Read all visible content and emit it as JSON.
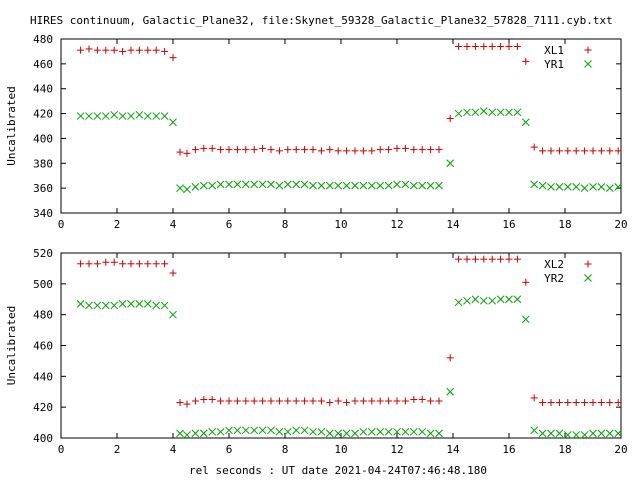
{
  "figure": {
    "title": "HIRES continuum, Galactic_Plane32, file:Skynet_59328_Galactic_Plane32_57828_7111.cyb.txt",
    "xlabel": "rel seconds : UT date 2021-04-24T07:46:48.180"
  },
  "chart_data": [
    {
      "type": "scatter",
      "ylabel": "Uncalibrated",
      "xlim": [
        0,
        20
      ],
      "ylim": [
        340,
        480
      ],
      "xticks": [
        0,
        2,
        4,
        6,
        8,
        10,
        12,
        14,
        16,
        18,
        20
      ],
      "yticks": [
        340,
        360,
        380,
        400,
        420,
        440,
        460,
        480
      ],
      "grid": false,
      "legend_position": "top-right",
      "series": [
        {
          "name": "XL1",
          "marker": "plus",
          "color": "#cc0000",
          "x": [
            0.7,
            1.0,
            1.3,
            1.6,
            1.9,
            2.2,
            2.5,
            2.8,
            3.1,
            3.4,
            3.7,
            4.0,
            4.25,
            4.5,
            4.8,
            5.1,
            5.4,
            5.7,
            6.0,
            6.3,
            6.6,
            6.9,
            7.2,
            7.5,
            7.8,
            8.1,
            8.4,
            8.7,
            9.0,
            9.3,
            9.6,
            9.9,
            10.2,
            10.5,
            10.8,
            11.1,
            11.4,
            11.7,
            12.0,
            12.3,
            12.6,
            12.9,
            13.2,
            13.5,
            13.9,
            14.2,
            14.5,
            14.8,
            15.1,
            15.4,
            15.7,
            16.0,
            16.3,
            16.6,
            16.9,
            17.2,
            17.5,
            17.8,
            18.1,
            18.4,
            18.7,
            19.0,
            19.3,
            19.6,
            19.9
          ],
          "y": [
            471,
            472,
            471,
            471,
            471,
            470,
            471,
            471,
            471,
            471,
            470,
            465,
            389,
            388,
            391,
            392,
            392,
            391,
            391,
            391,
            391,
            391,
            392,
            391,
            390,
            391,
            391,
            391,
            391,
            390,
            391,
            390,
            390,
            390,
            390,
            390,
            391,
            391,
            392,
            392,
            391,
            391,
            391,
            391,
            416,
            474,
            474,
            474,
            474,
            474,
            474,
            474,
            474,
            462,
            393,
            390,
            390,
            390,
            390,
            390,
            390,
            390,
            390,
            390,
            390
          ]
        },
        {
          "name": "YR1",
          "marker": "cross",
          "color": "#00a000",
          "x": [
            0.7,
            1.0,
            1.3,
            1.6,
            1.9,
            2.2,
            2.5,
            2.8,
            3.1,
            3.4,
            3.7,
            4.0,
            4.25,
            4.5,
            4.8,
            5.1,
            5.4,
            5.7,
            6.0,
            6.3,
            6.6,
            6.9,
            7.2,
            7.5,
            7.8,
            8.1,
            8.4,
            8.7,
            9.0,
            9.3,
            9.6,
            9.9,
            10.2,
            10.5,
            10.8,
            11.1,
            11.4,
            11.7,
            12.0,
            12.3,
            12.6,
            12.9,
            13.2,
            13.5,
            13.9,
            14.2,
            14.5,
            14.8,
            15.1,
            15.4,
            15.7,
            16.0,
            16.3,
            16.6,
            16.9,
            17.2,
            17.5,
            17.8,
            18.1,
            18.4,
            18.7,
            19.0,
            19.3,
            19.6,
            19.9
          ],
          "y": [
            418,
            418,
            418,
            418,
            419,
            418,
            418,
            419,
            418,
            418,
            418,
            413,
            360,
            359,
            361,
            362,
            362,
            363,
            363,
            363,
            363,
            363,
            363,
            363,
            362,
            363,
            363,
            363,
            362,
            362,
            362,
            362,
            362,
            362,
            362,
            362,
            362,
            362,
            363,
            363,
            362,
            362,
            362,
            362,
            380,
            420,
            421,
            421,
            422,
            421,
            421,
            421,
            421,
            413,
            363,
            362,
            361,
            361,
            361,
            361,
            360,
            361,
            361,
            360,
            361
          ]
        }
      ]
    },
    {
      "type": "scatter",
      "ylabel": "Uncalibrated",
      "xlim": [
        0,
        20
      ],
      "ylim": [
        400,
        520
      ],
      "xticks": [
        0,
        2,
        4,
        6,
        8,
        10,
        12,
        14,
        16,
        18,
        20
      ],
      "yticks": [
        400,
        420,
        440,
        460,
        480,
        500,
        520
      ],
      "grid": false,
      "legend_position": "top-right",
      "series": [
        {
          "name": "XL2",
          "marker": "plus",
          "color": "#cc0000",
          "x": [
            0.7,
            1.0,
            1.3,
            1.6,
            1.9,
            2.2,
            2.5,
            2.8,
            3.1,
            3.4,
            3.7,
            4.0,
            4.25,
            4.5,
            4.8,
            5.1,
            5.4,
            5.7,
            6.0,
            6.3,
            6.6,
            6.9,
            7.2,
            7.5,
            7.8,
            8.1,
            8.4,
            8.7,
            9.0,
            9.3,
            9.6,
            9.9,
            10.2,
            10.5,
            10.8,
            11.1,
            11.4,
            11.7,
            12.0,
            12.3,
            12.6,
            12.9,
            13.2,
            13.5,
            13.9,
            14.2,
            14.5,
            14.8,
            15.1,
            15.4,
            15.7,
            16.0,
            16.3,
            16.6,
            16.9,
            17.2,
            17.5,
            17.8,
            18.1,
            18.4,
            18.7,
            19.0,
            19.3,
            19.6,
            19.9
          ],
          "y": [
            513,
            513,
            513,
            514,
            514,
            513,
            513,
            513,
            513,
            513,
            513,
            507,
            423,
            422,
            424,
            425,
            425,
            424,
            424,
            424,
            424,
            424,
            424,
            424,
            424,
            424,
            424,
            424,
            424,
            424,
            423,
            424,
            423,
            424,
            424,
            424,
            424,
            424,
            424,
            424,
            425,
            425,
            424,
            424,
            452,
            516,
            516,
            516,
            516,
            516,
            516,
            516,
            516,
            501,
            426,
            423,
            423,
            423,
            423,
            423,
            423,
            423,
            423,
            423,
            423
          ]
        },
        {
          "name": "YR2",
          "marker": "cross",
          "color": "#00a000",
          "x": [
            0.7,
            1.0,
            1.3,
            1.6,
            1.9,
            2.2,
            2.5,
            2.8,
            3.1,
            3.4,
            3.7,
            4.0,
            4.25,
            4.5,
            4.8,
            5.1,
            5.4,
            5.7,
            6.0,
            6.3,
            6.6,
            6.9,
            7.2,
            7.5,
            7.8,
            8.1,
            8.4,
            8.7,
            9.0,
            9.3,
            9.6,
            9.9,
            10.2,
            10.5,
            10.8,
            11.1,
            11.4,
            11.7,
            12.0,
            12.3,
            12.6,
            12.9,
            13.2,
            13.5,
            13.9,
            14.2,
            14.5,
            14.8,
            15.1,
            15.4,
            15.7,
            16.0,
            16.3,
            16.6,
            16.9,
            17.2,
            17.5,
            17.8,
            18.1,
            18.4,
            18.7,
            19.0,
            19.3,
            19.6,
            19.9
          ],
          "y": [
            487,
            486,
            486,
            486,
            486,
            487,
            487,
            487,
            487,
            486,
            486,
            480,
            403,
            402,
            403,
            403,
            404,
            404,
            405,
            405,
            405,
            405,
            405,
            405,
            404,
            404,
            405,
            405,
            404,
            404,
            403,
            403,
            403,
            403,
            404,
            404,
            404,
            404,
            404,
            404,
            404,
            404,
            403,
            403,
            430,
            488,
            489,
            490,
            489,
            489,
            490,
            490,
            490,
            477,
            405,
            403,
            403,
            403,
            402,
            402,
            402,
            403,
            403,
            403,
            403
          ]
        }
      ]
    }
  ]
}
